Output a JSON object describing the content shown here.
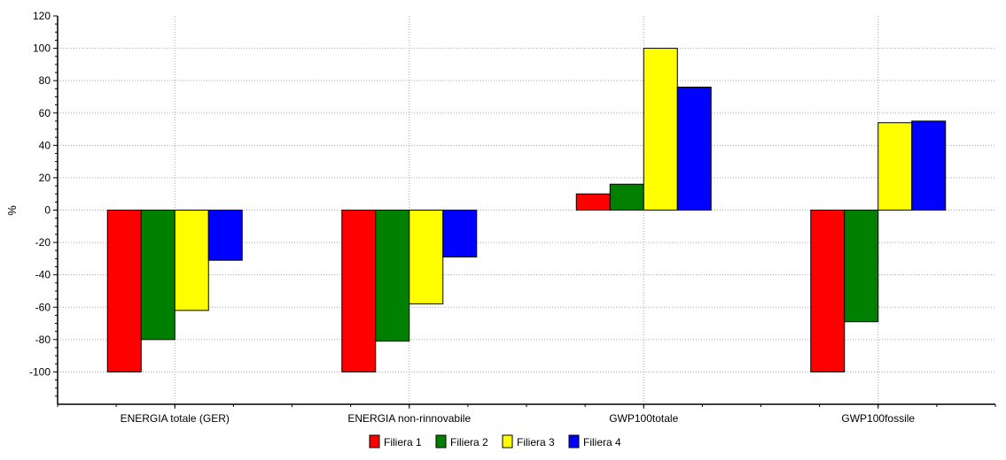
{
  "chart_data": {
    "type": "bar",
    "title": "",
    "xlabel": "",
    "ylabel": "%",
    "ylim": [
      -120,
      120
    ],
    "yticks": [
      120,
      100,
      80,
      60,
      40,
      20,
      0,
      -20,
      -40,
      -60,
      -80,
      -100
    ],
    "categories": [
      "ENERGIA totale (GER)",
      "ENERGIA non-rinnovabile",
      "GWP100totale",
      "GWP100fossile"
    ],
    "series": [
      {
        "name": "Filiera 1",
        "color": "#ff0000",
        "values": [
          -100,
          -100,
          10,
          -100
        ]
      },
      {
        "name": "Filiera 2",
        "color": "#008000",
        "values": [
          -80,
          -81,
          16,
          -69
        ]
      },
      {
        "name": "Filiera 3",
        "color": "#ffff00",
        "values": [
          -62,
          -58,
          100,
          54
        ]
      },
      {
        "name": "Filiera 4",
        "color": "#0000ff",
        "values": [
          -31,
          -29,
          76,
          55
        ]
      }
    ],
    "grid": true,
    "legend_position": "bottom-center"
  }
}
